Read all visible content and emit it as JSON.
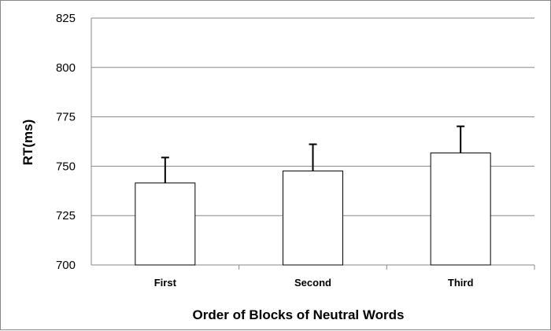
{
  "chart_data": {
    "type": "bar",
    "categories": [
      "First",
      "Second",
      "Third"
    ],
    "values": [
      741.5,
      747.6,
      756.7
    ],
    "error_upper": [
      754.4,
      761.1,
      770.2
    ],
    "xlabel": "Order of Blocks of Neutral Words",
    "ylabel": "RT(ms)",
    "ylim": [
      700,
      825
    ],
    "yticks": [
      700,
      725,
      750,
      775,
      800,
      825
    ],
    "grid": true,
    "legend": "none",
    "colors": {
      "bar_fill": "#ffffff",
      "bar_stroke": "#000000",
      "grid": "#888888"
    }
  }
}
